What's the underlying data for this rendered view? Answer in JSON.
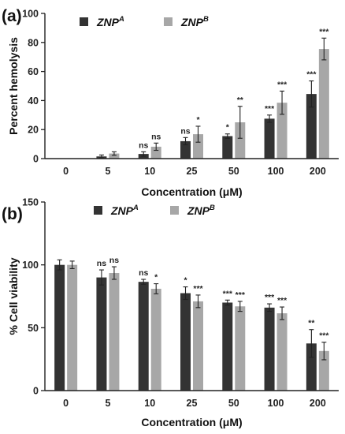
{
  "chart_data": [
    {
      "panel_label": "(a)",
      "type": "bar",
      "ylabel": "Percent hemolysis",
      "xlabel": "Concentration (μM)",
      "ylim": [
        0,
        100
      ],
      "yticks": [
        0,
        20,
        40,
        60,
        80,
        100
      ],
      "categories": [
        "0",
        "5",
        "10",
        "25",
        "50",
        "100",
        "200"
      ],
      "legend_position": "top",
      "series": [
        {
          "name": "ZNP",
          "superscript": "A",
          "color": "#333333",
          "values": [
            0,
            1.5,
            3.2,
            12,
            15.5,
            27.5,
            44.5
          ],
          "errors": [
            0,
            1,
            1.5,
            2.5,
            1.5,
            2.5,
            9
          ],
          "significance": [
            "",
            "",
            "ns",
            "ns",
            "*",
            "***",
            "***"
          ]
        },
        {
          "name": "ZNP",
          "superscript": "B",
          "color": "#a7a7a7",
          "values": [
            0,
            3.5,
            8.2,
            16.8,
            25,
            38.5,
            75.5
          ],
          "errors": [
            0,
            1.2,
            2.5,
            5.5,
            11,
            8,
            7.5
          ],
          "significance": [
            "",
            "",
            "ns",
            "*",
            "**",
            "***",
            "***"
          ]
        }
      ]
    },
    {
      "panel_label": "(b)",
      "type": "bar",
      "ylabel": "% Cell viability",
      "xlabel": "Concentration (μM)",
      "ylim": [
        0,
        150
      ],
      "yticks": [
        0,
        50,
        100,
        150
      ],
      "categories": [
        "0",
        "5",
        "10",
        "25",
        "50",
        "100",
        "200"
      ],
      "legend_position": "top",
      "series": [
        {
          "name": "ZNP",
          "superscript": "A",
          "color": "#333333",
          "values": [
            100,
            90,
            86.5,
            77.5,
            70,
            66,
            37.5
          ],
          "errors": [
            4,
            6,
            2,
            5,
            2,
            3,
            11
          ],
          "significance": [
            "",
            "ns",
            "ns",
            "*",
            "***",
            "***",
            "**"
          ]
        },
        {
          "name": "ZNP",
          "superscript": "B",
          "color": "#a7a7a7",
          "values": [
            100,
            93.5,
            81,
            71,
            67,
            61.5,
            31.5
          ],
          "errors": [
            3,
            5,
            4,
            5,
            4,
            5,
            7
          ],
          "significance": [
            "",
            "ns",
            "*",
            "***",
            "***",
            "***",
            "***"
          ]
        }
      ]
    }
  ]
}
